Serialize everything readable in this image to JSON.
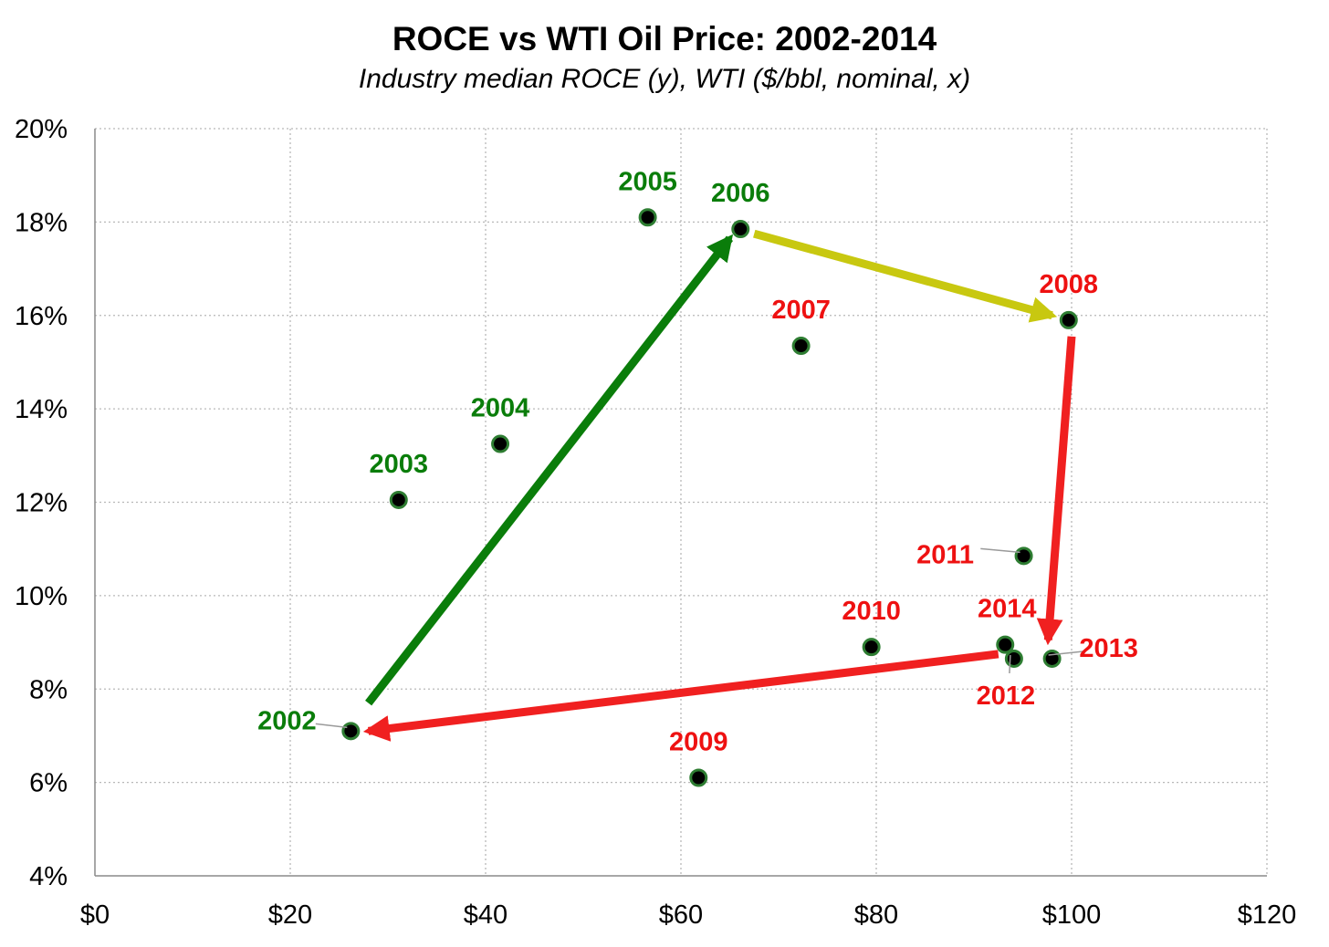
{
  "chart_data": {
    "type": "scatter",
    "title": "ROCE vs WTI Oil Price: 2002-2014",
    "subtitle": "Industry median ROCE (y), WTI ($/bbl, nominal, x)",
    "xlabel": "",
    "ylabel": "",
    "xlim": [
      0,
      120
    ],
    "ylim": [
      4,
      20
    ],
    "x_ticks": [
      0,
      20,
      40,
      60,
      80,
      100,
      120
    ],
    "x_tick_labels": [
      "$0",
      "$20",
      "$40",
      "$60",
      "$80",
      "$100",
      "$120"
    ],
    "y_ticks": [
      4,
      6,
      8,
      10,
      12,
      14,
      16,
      18,
      20
    ],
    "y_tick_labels": [
      "4%",
      "6%",
      "8%",
      "10%",
      "12%",
      "14%",
      "16%",
      "18%",
      "20%"
    ],
    "grid": true,
    "legend": "none",
    "marker_color": "#000000",
    "marker_edge_color": "#2e7d32",
    "points": [
      {
        "label": "2002",
        "x": 26.2,
        "y": 7.1,
        "color": "#0a7d0a"
      },
      {
        "label": "2003",
        "x": 31.1,
        "y": 12.05,
        "color": "#0a7d0a"
      },
      {
        "label": "2004",
        "x": 41.5,
        "y": 13.25,
        "color": "#0a7d0a"
      },
      {
        "label": "2005",
        "x": 56.6,
        "y": 18.1,
        "color": "#0a7d0a"
      },
      {
        "label": "2006",
        "x": 66.1,
        "y": 17.85,
        "color": "#0a7d0a"
      },
      {
        "label": "2007",
        "x": 72.3,
        "y": 15.35,
        "color": "#ee1111"
      },
      {
        "label": "2008",
        "x": 99.7,
        "y": 15.9,
        "color": "#ee1111"
      },
      {
        "label": "2009",
        "x": 61.8,
        "y": 6.1,
        "color": "#ee1111"
      },
      {
        "label": "2010",
        "x": 79.5,
        "y": 8.9,
        "color": "#ee1111"
      },
      {
        "label": "2011",
        "x": 95.1,
        "y": 10.85,
        "color": "#ee1111"
      },
      {
        "label": "2012",
        "x": 94.1,
        "y": 8.65,
        "color": "#ee1111"
      },
      {
        "label": "2013",
        "x": 98.0,
        "y": 8.65,
        "color": "#ee1111"
      },
      {
        "label": "2014",
        "x": 93.2,
        "y": 8.95,
        "color": "#ee1111"
      }
    ],
    "arrows": [
      {
        "from": [
          28.0,
          7.7
        ],
        "to": [
          65.0,
          17.65
        ],
        "color": "#0a7d0a"
      },
      {
        "from": [
          67.5,
          17.75
        ],
        "to": [
          98.0,
          16.0
        ],
        "color": "#c8c810"
      },
      {
        "from": [
          100.0,
          15.55
        ],
        "to": [
          97.6,
          9.05
        ],
        "color": "#f02020"
      },
      {
        "from": [
          92.5,
          8.75
        ],
        "to": [
          28.0,
          7.1
        ],
        "color": "#f02020"
      }
    ]
  }
}
